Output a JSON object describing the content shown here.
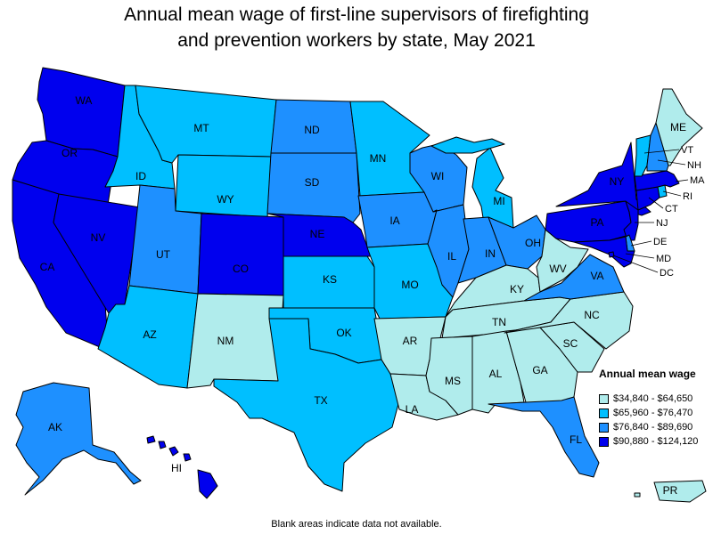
{
  "title_lines": [
    "Annual mean wage of first-line supervisors of firefighting",
    "and prevention workers by state, May 2021"
  ],
  "legend": {
    "title": "Annual mean wage",
    "items": [
      {
        "label": "$34,840 - $64,650",
        "color": "#b0ecec"
      },
      {
        "label": "$65,960 - $76,470",
        "color": "#00bfff"
      },
      {
        "label": "$76,840 - $89,690",
        "color": "#1e90ff"
      },
      {
        "label": "$90,880 - $124,120",
        "color": "#0000ee"
      }
    ]
  },
  "footnote": "Blank areas indicate data not available.",
  "map_data": {
    "states": [
      {
        "code": "WA",
        "bin": 3
      },
      {
        "code": "OR",
        "bin": 3
      },
      {
        "code": "CA",
        "bin": 3
      },
      {
        "code": "NV",
        "bin": 3
      },
      {
        "code": "ID",
        "bin": 1
      },
      {
        "code": "MT",
        "bin": 1
      },
      {
        "code": "WY",
        "bin": 1
      },
      {
        "code": "UT",
        "bin": 2
      },
      {
        "code": "AZ",
        "bin": 1
      },
      {
        "code": "CO",
        "bin": 3
      },
      {
        "code": "NM",
        "bin": 0
      },
      {
        "code": "ND",
        "bin": 2
      },
      {
        "code": "SD",
        "bin": 2
      },
      {
        "code": "NE",
        "bin": 3
      },
      {
        "code": "KS",
        "bin": 1
      },
      {
        "code": "OK",
        "bin": 1
      },
      {
        "code": "TX",
        "bin": 1
      },
      {
        "code": "MN",
        "bin": 1
      },
      {
        "code": "IA",
        "bin": 2
      },
      {
        "code": "MO",
        "bin": 1
      },
      {
        "code": "AR",
        "bin": 0
      },
      {
        "code": "LA",
        "bin": 0
      },
      {
        "code": "WI",
        "bin": 2
      },
      {
        "code": "IL",
        "bin": 2
      },
      {
        "code": "MI",
        "bin": 1
      },
      {
        "code": "IN",
        "bin": 2
      },
      {
        "code": "OH",
        "bin": 2
      },
      {
        "code": "KY",
        "bin": 0
      },
      {
        "code": "TN",
        "bin": 0
      },
      {
        "code": "MS",
        "bin": 0
      },
      {
        "code": "AL",
        "bin": 0
      },
      {
        "code": "GA",
        "bin": 0
      },
      {
        "code": "FL",
        "bin": 2
      },
      {
        "code": "SC",
        "bin": 0
      },
      {
        "code": "NC",
        "bin": 0
      },
      {
        "code": "VA",
        "bin": 2
      },
      {
        "code": "WV",
        "bin": 0
      },
      {
        "code": "PA",
        "bin": 3
      },
      {
        "code": "NY",
        "bin": 3
      },
      {
        "code": "NJ",
        "bin": 3
      },
      {
        "code": "DE",
        "bin": 2
      },
      {
        "code": "MD",
        "bin": 3
      },
      {
        "code": "DC",
        "bin": 3
      },
      {
        "code": "CT",
        "bin": 3
      },
      {
        "code": "RI",
        "bin": 1
      },
      {
        "code": "MA",
        "bin": 3
      },
      {
        "code": "VT",
        "bin": 1
      },
      {
        "code": "NH",
        "bin": 2
      },
      {
        "code": "ME",
        "bin": 0
      },
      {
        "code": "AK",
        "bin": 2
      },
      {
        "code": "HI",
        "bin": 3
      },
      {
        "code": "PR",
        "bin": 0
      }
    ]
  }
}
